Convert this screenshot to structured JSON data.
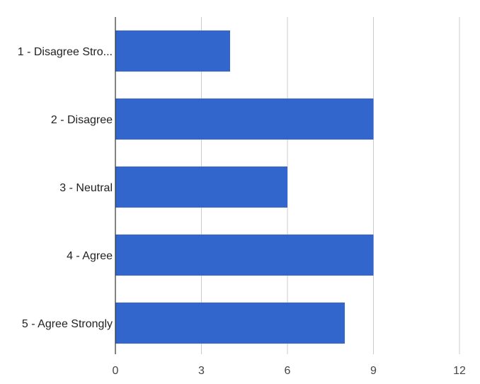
{
  "chart_data": {
    "type": "bar",
    "orientation": "horizontal",
    "categories": [
      "1 - Disagree Stro...",
      "2 - Disagree",
      "3 - Neutral",
      "4 - Agree",
      "5 - Agree Strongly"
    ],
    "values": [
      4,
      9,
      6,
      9,
      8
    ],
    "xlim": [
      0,
      12
    ],
    "xticks": [
      "0",
      "3",
      "6",
      "9",
      "12"
    ],
    "grid": true,
    "legend": "none",
    "colors": {
      "bar": "#3366cc"
    }
  }
}
